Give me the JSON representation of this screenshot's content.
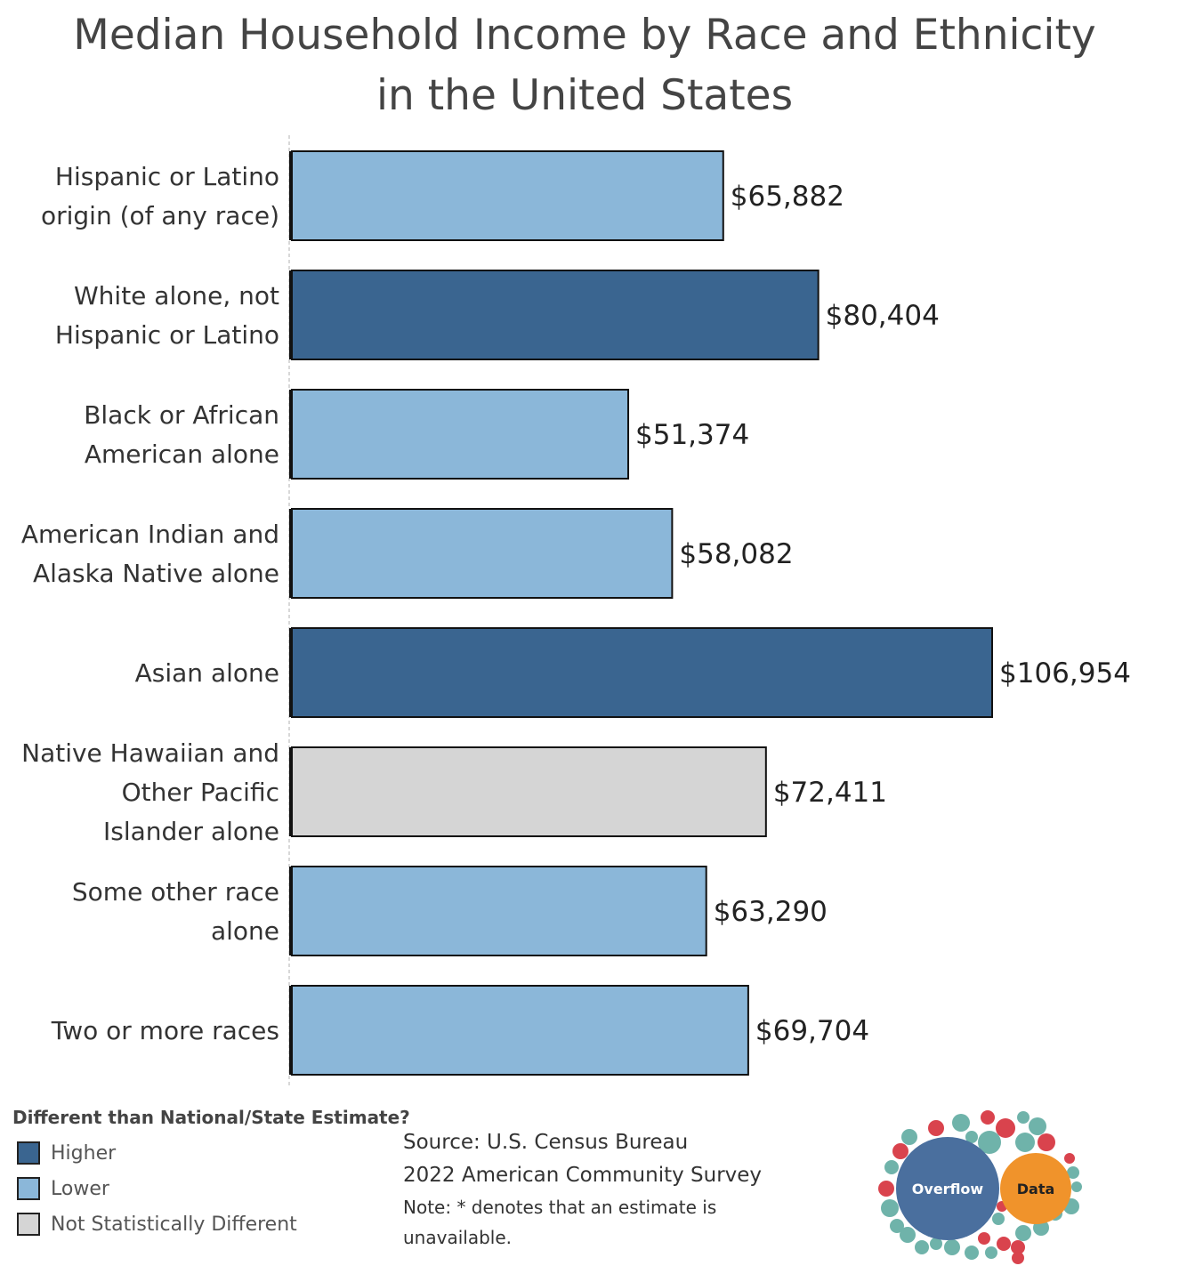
{
  "title": {
    "line1": "Median Household Income by Race and Ethnicity",
    "line2": "in the United States"
  },
  "chart_data": {
    "type": "bar",
    "orientation": "horizontal",
    "title": "Median Household Income by Race and Ethnicity in the United States",
    "categories": [
      [
        "Hispanic or Latino",
        "origin (of any race)"
      ],
      [
        "White alone, not",
        "Hispanic or Latino"
      ],
      [
        "Black or African",
        "American alone"
      ],
      [
        "American Indian and",
        "Alaska Native alone"
      ],
      [
        "Asian alone"
      ],
      [
        "Native Hawaiian and",
        "Other Pacific",
        "Islander alone"
      ],
      [
        "Some other race",
        "alone"
      ],
      [
        "Two or more races"
      ]
    ],
    "values": [
      65882,
      80404,
      51374,
      58082,
      106954,
      72411,
      63290,
      69704
    ],
    "value_labels": [
      "$65,882",
      "$80,404",
      "$51,374",
      "$58,082",
      "$106,954",
      "$72,411",
      "$63,290",
      "$69,704"
    ],
    "groups": [
      "Lower",
      "Higher",
      "Lower",
      "Lower",
      "Higher",
      "Not Statistically Different",
      "Lower",
      "Lower"
    ],
    "xlim": [
      0,
      106954
    ],
    "grid": false
  },
  "colors": {
    "Higher": "#3a6590",
    "Lower": "#8bb7d9",
    "Not Statistically Different": "#d5d5d5",
    "bar_border": "#111111",
    "axis_line": "#cccccc"
  },
  "legend": {
    "title": "Different than National/State Estimate?",
    "items": [
      {
        "label": "Higher",
        "key": "Higher"
      },
      {
        "label": "Lower",
        "key": "Lower"
      },
      {
        "label": "Not Statistically Different",
        "key": "Not Statistically Different"
      }
    ]
  },
  "source": {
    "line1": "Source: U.S. Census Bureau",
    "line2": "2022 American Community Survey",
    "note": "Note: * denotes that an estimate is unavailable."
  },
  "logo": {
    "left_text": "Overflow",
    "right_text": "Data",
    "left_color": "#4a6f9e",
    "right_color": "#f0932b"
  }
}
